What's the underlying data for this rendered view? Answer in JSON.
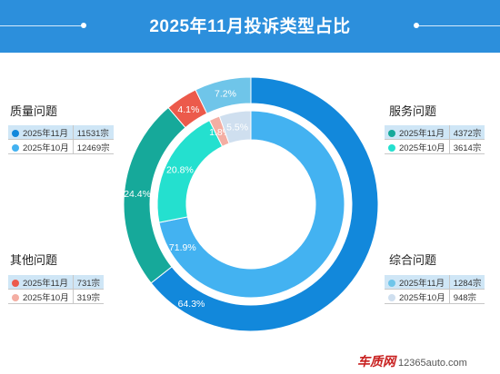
{
  "header": {
    "title": "2025年11月投诉类型占比"
  },
  "legend_groups": [
    {
      "key": "quality",
      "title": "质量问题",
      "color_nov": "#1288db",
      "color_oct": "#43b2f1",
      "nov_label": "2025年11月",
      "nov_value": "11531宗",
      "oct_label": "2025年10月",
      "oct_value": "12469宗"
    },
    {
      "key": "service",
      "title": "服务问题",
      "color_nov": "#16a99a",
      "color_oct": "#24e0cf",
      "nov_label": "2025年11月",
      "nov_value": "4372宗",
      "oct_label": "2025年10月",
      "oct_value": "3614宗"
    },
    {
      "key": "other",
      "title": "其他问题",
      "color_nov": "#ec5a4b",
      "color_oct": "#f4aea3",
      "nov_label": "2025年11月",
      "nov_value": "731宗",
      "oct_label": "2025年10月",
      "oct_value": "319宗"
    },
    {
      "key": "general",
      "title": "综合问题",
      "color_nov": "#6fc5e9",
      "color_oct": "#cfdfef",
      "nov_label": "2025年11月",
      "nov_value": "1284宗",
      "oct_label": "2025年10月",
      "oct_value": "948宗"
    }
  ],
  "chart_data": {
    "type": "pie",
    "variant": "nested-donut",
    "title": "2025年11月投诉类型占比",
    "categories": [
      "质量问题",
      "服务问题",
      "其他问题",
      "综合问题"
    ],
    "series": [
      {
        "name": "2025年11月",
        "ring": "outer",
        "values": [
          11531,
          4372,
          731,
          1284
        ],
        "labels": [
          "64.3%",
          "24.4%",
          "4.1%",
          "7.2%"
        ],
        "colors": [
          "#1288db",
          "#16a99a",
          "#ec5a4b",
          "#6fc5e9"
        ]
      },
      {
        "name": "2025年10月",
        "ring": "inner",
        "values": [
          12469,
          3614,
          319,
          948
        ],
        "labels": [
          "71.9%",
          "20.8%",
          "1.8%",
          "5.5%"
        ],
        "colors": [
          "#43b2f1",
          "#24e0cf",
          "#f4aea3",
          "#cfdfef"
        ]
      }
    ],
    "legend": "corners"
  },
  "watermark": {
    "brand": "车质网",
    "site": "12365auto.com"
  }
}
